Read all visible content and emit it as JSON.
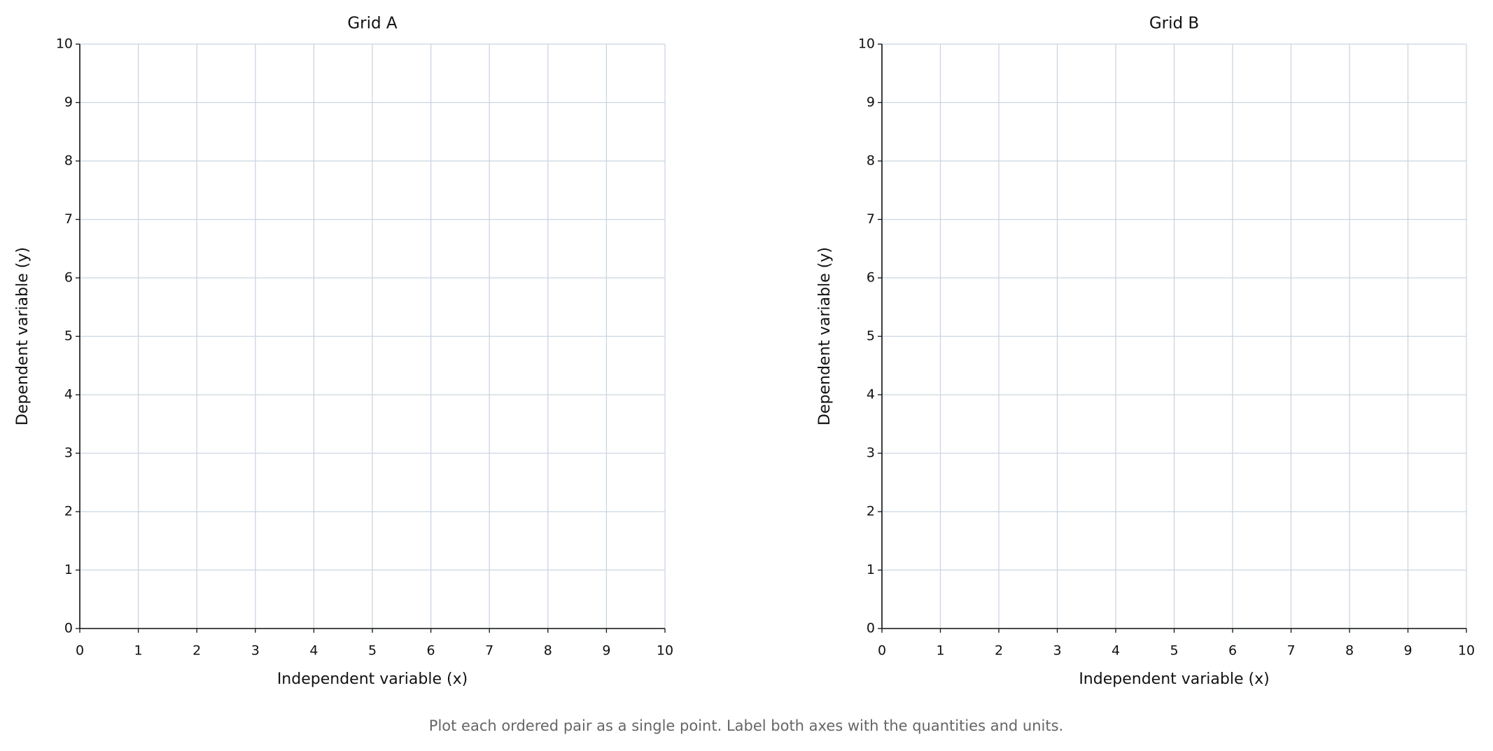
{
  "chart_data": [
    {
      "type": "scatter",
      "title": "Grid A",
      "xlabel": "Independent variable (x)",
      "ylabel": "Dependent variable (y)",
      "xlim": [
        0,
        10
      ],
      "ylim": [
        0,
        10
      ],
      "xticks": [
        0,
        1,
        2,
        3,
        4,
        5,
        6,
        7,
        8,
        9,
        10
      ],
      "yticks": [
        0,
        1,
        2,
        3,
        4,
        5,
        6,
        7,
        8,
        9,
        10
      ],
      "grid": true,
      "grid_color": "#cbd5e1"
    },
    {
      "type": "scatter",
      "title": "Grid B",
      "xlabel": "Independent variable (x)",
      "ylabel": "Dependent variable (y)",
      "xlim": [
        0,
        10
      ],
      "ylim": [
        0,
        10
      ],
      "xticks": [
        0,
        1,
        2,
        3,
        4,
        5,
        6,
        7,
        8,
        9,
        10
      ],
      "yticks": [
        0,
        1,
        2,
        3,
        4,
        5,
        6,
        7,
        8,
        9,
        10
      ],
      "grid": true,
      "grid_color": "#cbd5e1"
    }
  ],
  "caption": "Plot each ordered pair as a single point. Label both axes with the quantities and units."
}
